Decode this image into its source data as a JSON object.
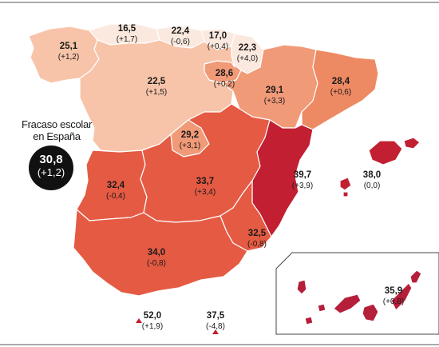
{
  "colors": {
    "lightest": "#fbe9df",
    "light": "#f7c4a9",
    "medium": "#f19a78",
    "medium_dark": "#ee8a63",
    "dark": "#e55a43",
    "darkest": "#c21f32",
    "islands": "#b51f3a"
  },
  "national": {
    "title_line1": "Fracaso escolar",
    "title_line2": "en España",
    "value": "30,8",
    "change": "(+1,2)"
  },
  "regions": [
    {
      "id": "galicia",
      "value": "25,1",
      "change": "(+1,2)"
    },
    {
      "id": "asturias",
      "value": "16,5",
      "change": "(+1,7)"
    },
    {
      "id": "cantabria",
      "value": "22,4",
      "change": "(-0,6)"
    },
    {
      "id": "pais-vasco",
      "value": "17,0",
      "change": "(+0,4)"
    },
    {
      "id": "navarra",
      "value": "22,3",
      "change": "(+4,0)"
    },
    {
      "id": "la-rioja",
      "value": "28,6",
      "change": "(+0,2)"
    },
    {
      "id": "castilla-leon",
      "value": "22,5",
      "change": "(+1,5)"
    },
    {
      "id": "aragon",
      "value": "29,1",
      "change": "(+3,3)"
    },
    {
      "id": "cataluna",
      "value": "28,4",
      "change": "(+0,6)"
    },
    {
      "id": "madrid",
      "value": "29,2",
      "change": "(+3,1)"
    },
    {
      "id": "extremadura",
      "value": "32,4",
      "change": "(-0,4)"
    },
    {
      "id": "castilla-la-mancha",
      "value": "33,7",
      "change": "(+3,4)"
    },
    {
      "id": "valencia",
      "value": "39,7",
      "change": "(+3,9)"
    },
    {
      "id": "baleares",
      "value": "38,0",
      "change": "(0,0)"
    },
    {
      "id": "murcia",
      "value": "32,5",
      "change": "(-0,8)"
    },
    {
      "id": "andalucia",
      "value": "34,0",
      "change": "(-0,8)"
    },
    {
      "id": "canarias",
      "value": "35,9",
      "change": "(+0,8)"
    },
    {
      "id": "ceuta",
      "value": "52,0",
      "change": "(+1,9)"
    },
    {
      "id": "melilla",
      "value": "37,5",
      "change": "(-4,8)"
    }
  ]
}
